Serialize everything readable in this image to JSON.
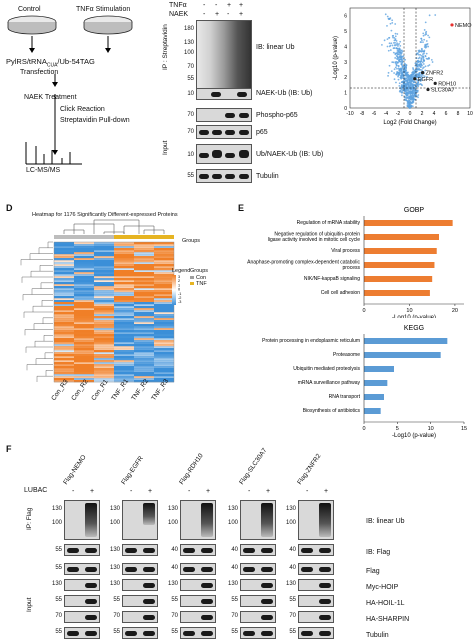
{
  "panelA": {
    "control": "Control",
    "tnf_stim": "TNFα Stimulation",
    "plasmid": "PylRS/tRNA",
    "plasmid_sub": "CUA",
    "plasmid_suffix": "/Ub-54TAG",
    "transfection": "Transfection",
    "naek_treatment": "NAEK Treatment",
    "click": "Click Reaction",
    "pulldown": "Streptavidin Pull-down",
    "lcms": "LC-MS/MS"
  },
  "panelB": {
    "tnfa": "TNFα",
    "naek": "NAEK",
    "signs_tnfa": [
      "-",
      "-",
      "+",
      "+"
    ],
    "signs_naek": [
      "-",
      "+",
      "-",
      "+"
    ],
    "ip_label": "IP : Streptavidin",
    "input_label": "Input",
    "markers_top": [
      "180",
      "130",
      "100",
      "70",
      "55"
    ],
    "marker_naek": "10",
    "markers_input": [
      "70",
      "70",
      "10",
      "55"
    ],
    "blots": [
      "IB: linear Ub",
      "NAEK-Ub (IB: Ub)",
      "Phospho-p65",
      "p65",
      "Ub/NAEK-Ub (IB: Ub)",
      "Tubulin"
    ]
  },
  "panelC": {
    "ylabel": "-Log10 (p-value)",
    "xlabel": "Log2 (Fold Change)",
    "xticks": [
      "-10",
      "-8",
      "-6",
      "-4",
      "-2",
      "0",
      "2",
      "4",
      "6",
      "8",
      "10"
    ],
    "yticks": [
      "0",
      "1",
      "2",
      "3",
      "4",
      "5",
      "6"
    ],
    "genes": [
      "NEMO",
      "ZNFR2",
      "EGFR",
      "RDH10",
      "SLC30A7"
    ]
  },
  "panelD": {
    "letter": "D",
    "title": "Heatmap for 1176 Significantly Different-expressed Proteins",
    "groups_label": "Groups",
    "legend_title": "Legend",
    "legend_groups": "Groups",
    "legend_con": "Con",
    "legend_tnf": "TNF",
    "legend_scale": [
      "3",
      "2",
      "1",
      "0",
      "-1",
      "-2",
      "-3"
    ],
    "columns": [
      "Con_R3",
      "Con_R2",
      "Con_R1",
      "TNF_R1",
      "TNF_R2",
      "TNF_R3"
    ]
  },
  "panelE": {
    "letter": "E",
    "gobp_title": "GOBP",
    "kegg_title": "KEGG",
    "xlabel": "-Log10 (p-value)",
    "gobp_color": "#ed7d31",
    "kegg_color": "#5b9bd5",
    "gobp_ticks": [
      "0",
      "10",
      "20"
    ],
    "kegg_ticks": [
      "0",
      "5",
      "10",
      "15"
    ]
  },
  "panelF": {
    "letter": "F",
    "lubac": "LUBAC",
    "ip_label": "IP: Flag",
    "input_label": "Input",
    "constructs": [
      "Flag-NEMO",
      "Flag-EGFR",
      "Flag-RDH10",
      "Flag-SLC30A7",
      "Flag-ZNFR2"
    ],
    "signs": [
      "-",
      "+"
    ],
    "ib_labels": [
      "IB: linear Ub",
      "IB: Flag",
      "Flag",
      "Myc-HOIP",
      "HA-HOIL-1L",
      "HA-SHARPIN",
      "Tubulin"
    ],
    "markers": [
      {
        "top": [
          "130",
          "100"
        ],
        "flag": "55",
        "input": [
          "55",
          "130",
          "55",
          "70",
          "55"
        ]
      },
      {
        "top": [
          "130",
          "100"
        ],
        "flag": "130",
        "input": [
          "130",
          "130",
          "55",
          "70",
          "55"
        ]
      },
      {
        "top": [
          "130",
          "100"
        ],
        "flag": "40",
        "input": [
          "40",
          "130",
          "55",
          "70",
          "55"
        ]
      },
      {
        "top": [
          "130",
          "100"
        ],
        "flag": "40",
        "input": [
          "40",
          "130",
          "55",
          "70",
          "55"
        ]
      },
      {
        "top": [
          "130",
          "100"
        ],
        "flag": "40",
        "input": [
          "40",
          "130",
          "55",
          "70",
          "55"
        ]
      }
    ]
  },
  "chart_data": [
    {
      "type": "scatter",
      "title": "",
      "xlabel": "Log2 (Fold Change)",
      "ylabel": "-Log10 (p-value)",
      "xlim": [
        -10,
        10
      ],
      "ylim": [
        0,
        6.5
      ],
      "highlight": [
        {
          "label": "NEMO",
          "x": 7.0,
          "y": 5.4,
          "color": "#e8312f"
        },
        {
          "label": "ZNFR2",
          "x": 2.1,
          "y": 2.3
        },
        {
          "label": "EGFR",
          "x": 0.8,
          "y": 1.9
        },
        {
          "label": "RDH10",
          "x": 4.2,
          "y": 1.6
        },
        {
          "label": "SLC30A7",
          "x": 3.0,
          "y": 1.2
        }
      ],
      "thresholds": {
        "x": [
          -1,
          1
        ],
        "y": 1.3
      }
    },
    {
      "type": "bar",
      "title": "GOBP",
      "xlabel": "-Log10 (p-value)",
      "categories": [
        "Regulation of mRNA stability",
        "Negative regulation of ubiquitin-protein ligase activity involved in mitotic cell cycle",
        "Viral process",
        "Anaphase-promoting complex-dependent catabolic process",
        "NIK/NF-kappaB signaling",
        "Cell cell adhesion"
      ],
      "values": [
        19.5,
        16.5,
        16.0,
        15.5,
        15.0,
        14.5
      ],
      "xlim": [
        0,
        22
      ]
    },
    {
      "type": "bar",
      "title": "KEGG",
      "xlabel": "-Log10 (p-value)",
      "categories": [
        "Protein processing in endoplasmic reticulum",
        "Proteasome",
        "Ubiquitin mediated proteolysis",
        "mRNA surveillance pathway",
        "RNA transport",
        "Biosynthesis of antibiotics"
      ],
      "values": [
        12.5,
        11.5,
        4.5,
        3.5,
        3.0,
        2.5
      ],
      "xlim": [
        0,
        15
      ]
    }
  ]
}
